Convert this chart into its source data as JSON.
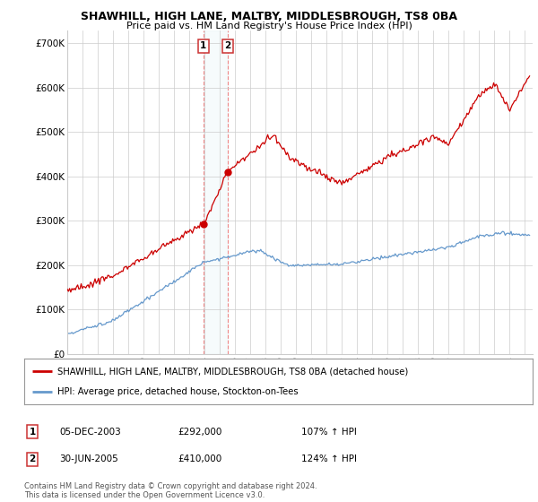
{
  "title": "SHAWHILL, HIGH LANE, MALTBY, MIDDLESBROUGH, TS8 0BA",
  "subtitle": "Price paid vs. HM Land Registry's House Price Index (HPI)",
  "ylabel_ticks": [
    "£0",
    "£100K",
    "£200K",
    "£300K",
    "£400K",
    "£500K",
    "£600K",
    "£700K"
  ],
  "ytick_vals": [
    0,
    100000,
    200000,
    300000,
    400000,
    500000,
    600000,
    700000
  ],
  "ylim": [
    0,
    730000
  ],
  "xlim_start": 1995.0,
  "xlim_end": 2025.5,
  "legend_line1": "SHAWHILL, HIGH LANE, MALTBY, MIDDLESBROUGH, TS8 0BA (detached house)",
  "legend_line2": "HPI: Average price, detached house, Stockton-on-Tees",
  "red_color": "#cc0000",
  "blue_color": "#6699cc",
  "marker1_x": 2003.92,
  "marker1_y": 292000,
  "marker2_x": 2005.5,
  "marker2_y": 410000,
  "table_row1": [
    "1",
    "05-DEC-2003",
    "£292,000",
    "107% ↑ HPI"
  ],
  "table_row2": [
    "2",
    "30-JUN-2005",
    "£410,000",
    "124% ↑ HPI"
  ],
  "footer": "Contains HM Land Registry data © Crown copyright and database right 2024.\nThis data is licensed under the Open Government Licence v3.0.",
  "background_color": "#ffffff"
}
